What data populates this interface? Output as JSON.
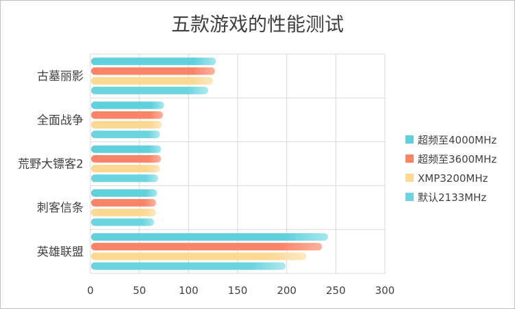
{
  "chart_data": {
    "type": "bar",
    "orientation": "horizontal",
    "title": "五款游戏的性能测试",
    "categories": [
      "古墓丽影",
      "全面战争",
      "荒野大镖客2",
      "刺客信条",
      "英雄联盟"
    ],
    "series": [
      {
        "name": "超频至4000MHz",
        "color": "#5fd0dc",
        "values": [
          128,
          75,
          72,
          68,
          242
        ]
      },
      {
        "name": "超频至3600MHz",
        "color": "#fa8468",
        "values": [
          127,
          74,
          72,
          67,
          236
        ]
      },
      {
        "name": "XMP3200MHz",
        "color": "#fcd892",
        "values": [
          125,
          73,
          71,
          67,
          220
        ]
      },
      {
        "name": "默认2133MHz",
        "color": "#6bd4de",
        "values": [
          120,
          71,
          69,
          65,
          199
        ]
      }
    ],
    "xlim": [
      0,
      300
    ],
    "xticks": [
      "0",
      "50",
      "100",
      "150",
      "200",
      "250",
      "300"
    ],
    "grid": true,
    "legend": "right"
  }
}
